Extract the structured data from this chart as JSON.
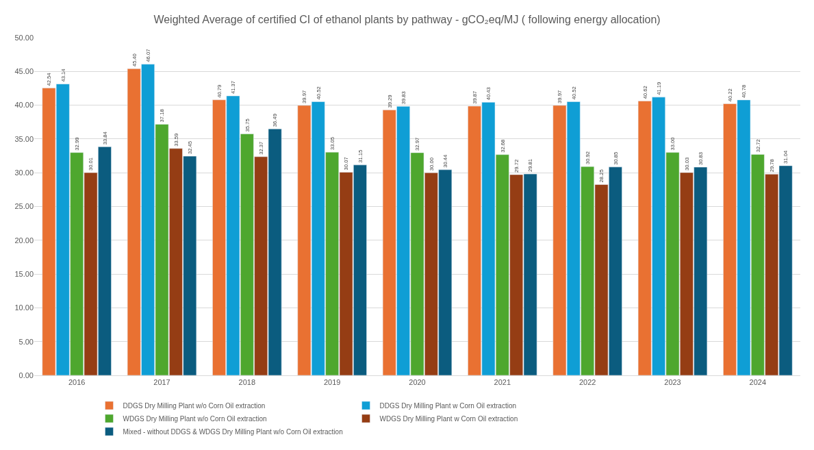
{
  "chart_data": {
    "type": "bar",
    "title": "Weighted Average of certified CI of ethanol plants by pathway - gCO₂eq/MJ ( following energy allocation)",
    "categories": [
      "2016",
      "2017",
      "2018",
      "2019",
      "2020",
      "2021",
      "2022",
      "2023",
      "2024"
    ],
    "series": [
      {
        "name": "DDGS Dry Milling Plant w/o Corn Oil extraction",
        "color": "#e97132",
        "values": [
          42.54,
          45.4,
          40.79,
          39.97,
          39.29,
          39.87,
          39.97,
          40.62,
          40.22
        ],
        "value_labels": [
          "42.54",
          "45.40",
          "40.79",
          "39.97",
          "39.29",
          "39.87",
          "39.97",
          "40.62",
          "40.22"
        ]
      },
      {
        "name": "DDGS Dry Milling Plant w Corn Oil extraction",
        "color": "#0f9ed5",
        "values": [
          43.14,
          46.07,
          41.37,
          40.52,
          39.83,
          40.43,
          40.52,
          41.19,
          40.78
        ],
        "value_labels": [
          "43.14",
          "46.07",
          "41.37",
          "40.52",
          "39.83",
          "40.43",
          "40.52",
          "41.19",
          "40.78"
        ]
      },
      {
        "name": "WDGS Dry Milling Plant w/o Corn Oil extraction",
        "color": "#4ea72e",
        "values": [
          32.99,
          37.18,
          35.75,
          33.05,
          32.97,
          32.68,
          30.92,
          33.0,
          32.72
        ],
        "value_labels": [
          "32.99",
          "37.18",
          "35.75",
          "33.05",
          "32.97",
          "32.68",
          "30.92",
          "33.00",
          "32.72"
        ]
      },
      {
        "name": "WDGS Dry Milling Plant w Corn Oil extraction",
        "color": "#953d14",
        "values": [
          30.01,
          33.59,
          32.37,
          30.07,
          30.0,
          29.72,
          28.25,
          30.03,
          29.78
        ],
        "value_labels": [
          "30.01",
          "33.59",
          "32.37",
          "30.07",
          "30.00",
          "29.72",
          "28.25",
          "30.03",
          "29.78"
        ]
      },
      {
        "name": "Mixed - without DDGS & WDGS Dry Milling Plant w/o Corn Oil extraction",
        "color": "#0b5c7f",
        "values": [
          33.84,
          32.45,
          36.49,
          31.15,
          30.44,
          29.81,
          30.85,
          30.83,
          31.04
        ],
        "value_labels": [
          "33.84",
          "32.45",
          "36.49",
          "31.15",
          "30.44",
          "29.81",
          "30.85",
          "30.83",
          "31.04"
        ]
      }
    ],
    "ylim": [
      0,
      50
    ],
    "yticks": [
      {
        "value": 0,
        "label": "0.00"
      },
      {
        "value": 5,
        "label": "5.00"
      },
      {
        "value": 10,
        "label": "10.00"
      },
      {
        "value": 15,
        "label": "15.00"
      },
      {
        "value": 20,
        "label": "20.00"
      },
      {
        "value": 25,
        "label": "25.00"
      },
      {
        "value": 30,
        "label": "30.00"
      },
      {
        "value": 35,
        "label": "35.00"
      },
      {
        "value": 40,
        "label": "40.00"
      },
      {
        "value": 45,
        "label": "45.00"
      },
      {
        "value": 50,
        "label": "50.00"
      }
    ],
    "grid": "y",
    "legend": "bottom"
  }
}
